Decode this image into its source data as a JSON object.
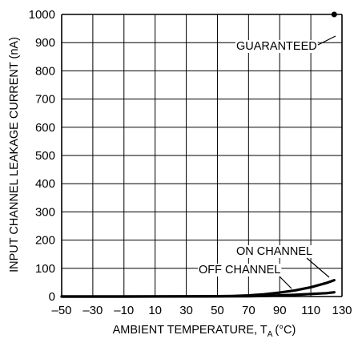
{
  "chart_data": {
    "type": "line",
    "xlabel": "AMBIENT TEMPERATURE, T",
    "xlabel_subscript": "A",
    "xlabel_unit": "(°C)",
    "ylabel": "INPUT CHANNEL LEAKAGE CURRENT (nA)",
    "xlim": [
      -50,
      130
    ],
    "ylim": [
      0,
      1000
    ],
    "x_ticks": [
      -50,
      -30,
      -10,
      10,
      30,
      50,
      70,
      90,
      110,
      130
    ],
    "x_tick_labels": [
      "–50",
      "–30",
      "–10",
      "10",
      "30",
      "50",
      "70",
      "90",
      "110",
      "130"
    ],
    "y_ticks": [
      0,
      100,
      200,
      300,
      400,
      500,
      600,
      700,
      800,
      900,
      1000
    ],
    "grid": true,
    "series": [
      {
        "name": "ON CHANNEL",
        "x": [
          -50,
          -10,
          30,
          50,
          60,
          70,
          80,
          90,
          100,
          110,
          120,
          125
        ],
        "y": [
          0,
          0,
          0.5,
          1,
          2,
          4,
          8,
          14,
          22,
          33,
          48,
          58
        ]
      },
      {
        "name": "OFF CHANNEL",
        "x": [
          -50,
          -10,
          30,
          50,
          70,
          80,
          90,
          100,
          110,
          120,
          125
        ],
        "y": [
          0,
          0,
          0.2,
          0.5,
          1,
          2,
          4,
          6,
          9,
          12,
          15
        ]
      }
    ],
    "markers": [
      {
        "name": "GUARANTEED",
        "x": 125,
        "y": 1000
      }
    ],
    "annotations": [
      {
        "text": "GUARANTEED",
        "target": "GUARANTEED"
      },
      {
        "text": "ON CHANNEL",
        "target": "ON CHANNEL"
      },
      {
        "text": "OFF CHANNEL",
        "target": "OFF CHANNEL"
      }
    ]
  }
}
